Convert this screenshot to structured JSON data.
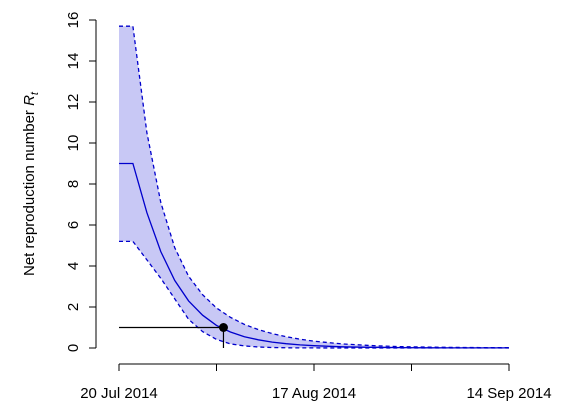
{
  "chart_data": {
    "type": "line",
    "title": "",
    "xlabel": "",
    "ylabel": {
      "text": "Net reproduction number",
      "symbol": "R",
      "subscript": "t"
    },
    "x_ticks": [
      "20 Jul 2014",
      "17 Aug 2014",
      "14 Sep 2014"
    ],
    "x_tick_day_offsets": [
      0,
      14,
      28,
      42,
      56
    ],
    "y_ticks": [
      "0",
      "2",
      "4",
      "6",
      "8",
      "10",
      "12",
      "14",
      "16"
    ],
    "xlim": [
      "2014-07-20",
      "2014-09-14"
    ],
    "ylim": [
      0,
      16
    ],
    "series": [
      {
        "role": "estimate",
        "style": "solid",
        "color": "#0000cc",
        "x": [
          "2014-07-20",
          "2014-07-22",
          "2014-07-24",
          "2014-07-26",
          "2014-07-28",
          "2014-07-30",
          "2014-08-01",
          "2014-08-03",
          "2014-08-05",
          "2014-08-07",
          "2014-08-09",
          "2014-08-11",
          "2014-08-13",
          "2014-08-15",
          "2014-08-17",
          "2014-08-21",
          "2014-08-25",
          "2014-08-29",
          "2014-09-02",
          "2014-09-06",
          "2014-09-10",
          "2014-09-14"
        ],
        "y": [
          9.0,
          9.0,
          6.6,
          4.7,
          3.3,
          2.3,
          1.6,
          1.1,
          0.78,
          0.55,
          0.4,
          0.29,
          0.21,
          0.15,
          0.11,
          0.06,
          0.035,
          0.02,
          0.012,
          0.007,
          0.004,
          0.003
        ]
      },
      {
        "role": "upper bound",
        "style": "dashed",
        "color": "#0000cc",
        "x": [
          "2014-07-20",
          "2014-07-22",
          "2014-07-24",
          "2014-07-26",
          "2014-07-28",
          "2014-07-30",
          "2014-08-01",
          "2014-08-03",
          "2014-08-05",
          "2014-08-07",
          "2014-08-09",
          "2014-08-11",
          "2014-08-13",
          "2014-08-15",
          "2014-08-17",
          "2014-08-21",
          "2014-08-25",
          "2014-08-29",
          "2014-09-02",
          "2014-09-06",
          "2014-09-10",
          "2014-09-14"
        ],
        "y": [
          15.7,
          15.7,
          10.5,
          7.1,
          4.9,
          3.5,
          2.6,
          1.95,
          1.5,
          1.15,
          0.9,
          0.7,
          0.55,
          0.43,
          0.33,
          0.2,
          0.12,
          0.07,
          0.045,
          0.03,
          0.02,
          0.015
        ]
      },
      {
        "role": "lower bound",
        "style": "dashed",
        "color": "#0000cc",
        "x": [
          "2014-07-20",
          "2014-07-22",
          "2014-07-24",
          "2014-07-26",
          "2014-07-28",
          "2014-07-30",
          "2014-08-01",
          "2014-08-03",
          "2014-08-05",
          "2014-08-07",
          "2014-08-09",
          "2014-08-11",
          "2014-08-13",
          "2014-08-15",
          "2014-08-17",
          "2014-08-21",
          "2014-08-25",
          "2014-08-29",
          "2014-09-02",
          "2014-09-06",
          "2014-09-10",
          "2014-09-14"
        ],
        "y": [
          5.2,
          5.2,
          4.3,
          3.4,
          2.4,
          1.4,
          0.8,
          0.42,
          0.2,
          0.1,
          0.05,
          0.025,
          0.012,
          0.006,
          0.003,
          0.001,
          0.0,
          0.0,
          0.0,
          0.0,
          0.0,
          0.0
        ]
      }
    ],
    "band_fill": "#c8c8f5",
    "annotation": {
      "point": {
        "x": "2014-08-04",
        "y": 1.0
      },
      "reference_value": 1.0
    },
    "grid": false,
    "legend": "none"
  }
}
